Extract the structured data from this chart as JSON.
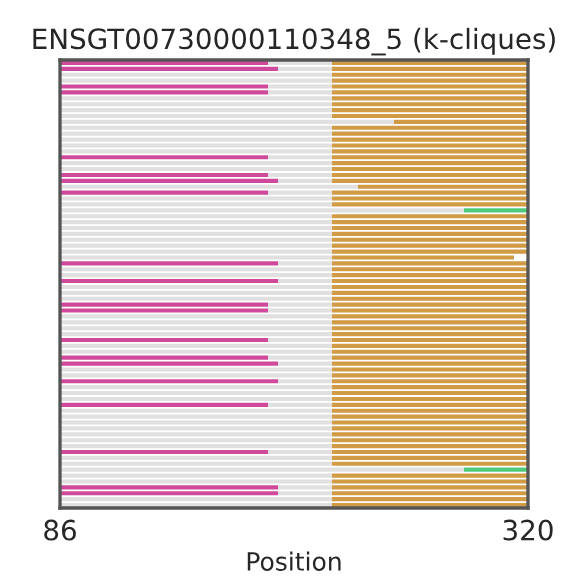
{
  "chart_data": {
    "type": "bar",
    "orientation": "horizontal",
    "title": "ENSGT00730000110348_5 (k-cliques)",
    "xlabel": "Position",
    "categories": [
      null,
      null,
      null,
      null,
      null,
      null,
      null,
      null,
      null,
      null,
      null,
      null,
      null,
      null,
      null,
      null,
      null,
      null,
      null,
      null,
      null,
      null,
      null,
      null,
      null,
      null,
      null,
      null,
      null,
      null,
      null,
      null,
      null,
      null,
      null,
      null,
      null,
      null,
      null,
      null,
      null,
      null,
      null,
      null,
      null,
      null,
      null,
      null,
      null,
      null,
      null,
      null,
      null,
      null,
      null,
      null,
      null,
      null,
      null,
      null,
      null,
      null,
      null,
      null,
      null,
      null,
      null,
      null,
      null,
      null,
      null,
      null,
      null,
      null,
      null,
      null
    ],
    "xlim": [
      86,
      320
    ],
    "xticks": [
      86,
      320
    ],
    "tick_labels": "x",
    "grid": false,
    "legend": false,
    "series": [
      {
        "color": "#e0e0e0",
        "base": [
          190,
          195,
          86,
          86,
          190,
          190,
          86,
          86,
          86,
          86,
          86,
          86,
          86,
          86,
          86,
          86,
          190,
          86,
          86,
          190,
          195,
          86,
          190,
          86,
          86,
          86,
          86,
          86,
          86,
          86,
          86,
          86,
          86,
          86,
          195,
          86,
          86,
          195,
          86,
          86,
          86,
          190,
          190,
          86,
          86,
          86,
          86,
          190,
          86,
          86,
          190,
          195,
          86,
          86,
          195,
          86,
          86,
          86,
          190,
          86,
          86,
          86,
          86,
          86,
          86,
          86,
          190,
          86,
          86,
          86,
          86,
          86,
          195,
          195,
          86,
          86
        ],
        "values": [
          32,
          27,
          136,
          136,
          32,
          32,
          136,
          136,
          136,
          136,
          167,
          136,
          136,
          136,
          136,
          136,
          32,
          136,
          136,
          32,
          27,
          149,
          32,
          136,
          136,
          202,
          136,
          136,
          136,
          136,
          136,
          136,
          136,
          136,
          27,
          136,
          136,
          27,
          136,
          136,
          136,
          32,
          32,
          136,
          136,
          136,
          136,
          32,
          136,
          136,
          32,
          27,
          136,
          136,
          27,
          136,
          136,
          136,
          32,
          136,
          136,
          136,
          136,
          136,
          136,
          136,
          32,
          136,
          136,
          202,
          136,
          136,
          27,
          27,
          136,
          136
        ]
      },
      {
        "color": "#d04a9c",
        "base": [
          86,
          86,
          null,
          null,
          86,
          86,
          null,
          null,
          null,
          null,
          null,
          null,
          null,
          null,
          null,
          null,
          86,
          null,
          null,
          86,
          86,
          null,
          86,
          null,
          null,
          null,
          null,
          null,
          null,
          null,
          null,
          null,
          null,
          null,
          86,
          null,
          null,
          86,
          null,
          null,
          null,
          86,
          86,
          null,
          null,
          null,
          null,
          86,
          null,
          null,
          86,
          86,
          null,
          null,
          86,
          null,
          null,
          null,
          86,
          null,
          null,
          null,
          null,
          null,
          null,
          null,
          86,
          null,
          null,
          null,
          null,
          null,
          86,
          86,
          null,
          null
        ],
        "values": [
          104,
          109,
          null,
          null,
          104,
          104,
          null,
          null,
          null,
          null,
          null,
          null,
          null,
          null,
          null,
          null,
          104,
          null,
          null,
          104,
          109,
          null,
          104,
          null,
          null,
          null,
          null,
          null,
          null,
          null,
          null,
          null,
          null,
          null,
          109,
          null,
          null,
          109,
          null,
          null,
          null,
          104,
          104,
          null,
          null,
          null,
          null,
          104,
          null,
          null,
          104,
          109,
          null,
          null,
          109,
          null,
          null,
          null,
          104,
          null,
          null,
          null,
          null,
          null,
          null,
          null,
          104,
          null,
          null,
          null,
          null,
          null,
          109,
          109,
          null,
          null
        ]
      },
      {
        "color": "#d19a45",
        "base": [
          222,
          222,
          222,
          222,
          222,
          222,
          222,
          222,
          222,
          222,
          253,
          222,
          222,
          222,
          222,
          222,
          222,
          222,
          222,
          222,
          222,
          235,
          222,
          222,
          222,
          null,
          222,
          222,
          222,
          222,
          222,
          222,
          222,
          222,
          222,
          222,
          222,
          222,
          222,
          222,
          222,
          222,
          222,
          222,
          222,
          222,
          222,
          222,
          222,
          222,
          222,
          222,
          222,
          222,
          222,
          222,
          222,
          222,
          222,
          222,
          222,
          222,
          222,
          222,
          222,
          222,
          222,
          222,
          222,
          null,
          222,
          222,
          222,
          222,
          222,
          222
        ],
        "values": [
          98,
          98,
          98,
          98,
          98,
          98,
          98,
          98,
          98,
          98,
          67,
          98,
          98,
          98,
          98,
          98,
          98,
          98,
          98,
          98,
          98,
          85,
          98,
          98,
          98,
          null,
          98,
          98,
          98,
          98,
          98,
          98,
          98,
          91,
          98,
          98,
          98,
          98,
          98,
          98,
          98,
          98,
          98,
          98,
          98,
          98,
          98,
          98,
          98,
          98,
          98,
          98,
          98,
          98,
          98,
          98,
          98,
          98,
          98,
          98,
          98,
          98,
          98,
          98,
          98,
          98,
          98,
          98,
          98,
          null,
          98,
          98,
          98,
          98,
          98,
          98
        ]
      },
      {
        "color": "#4ec97b",
        "base": [
          null,
          null,
          null,
          null,
          null,
          null,
          null,
          null,
          null,
          null,
          null,
          null,
          null,
          null,
          null,
          null,
          null,
          null,
          null,
          null,
          null,
          null,
          null,
          null,
          null,
          288,
          null,
          null,
          null,
          null,
          null,
          null,
          null,
          null,
          null,
          null,
          null,
          null,
          null,
          null,
          null,
          null,
          null,
          null,
          null,
          null,
          null,
          null,
          null,
          null,
          null,
          null,
          null,
          null,
          null,
          null,
          null,
          null,
          null,
          null,
          null,
          null,
          null,
          null,
          null,
          null,
          null,
          null,
          null,
          288,
          null,
          null,
          null,
          null,
          null,
          null
        ],
        "values": [
          null,
          null,
          null,
          null,
          null,
          null,
          null,
          null,
          null,
          null,
          null,
          null,
          null,
          null,
          null,
          null,
          null,
          null,
          null,
          null,
          null,
          null,
          null,
          null,
          null,
          32,
          null,
          null,
          null,
          null,
          null,
          null,
          null,
          null,
          null,
          null,
          null,
          null,
          null,
          null,
          null,
          null,
          null,
          null,
          null,
          null,
          null,
          null,
          null,
          null,
          null,
          null,
          null,
          null,
          null,
          null,
          null,
          null,
          null,
          null,
          null,
          null,
          null,
          null,
          null,
          null,
          null,
          null,
          null,
          32,
          null,
          null,
          null,
          null,
          null,
          null
        ]
      }
    ]
  }
}
